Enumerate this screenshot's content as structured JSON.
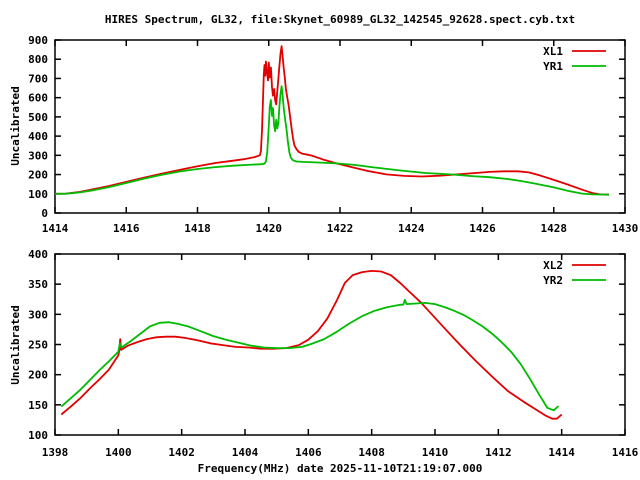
{
  "title": "HIRES Spectrum, GL32, file:Skynet_60989_GL32_142545_92628.spect.cyb.txt",
  "footer_xlabel": "Frequency(MHz) date 2025-11-10T21:19:07.000",
  "colors": {
    "background": "#ffffff",
    "axis": "#000000",
    "text": "#000000",
    "series_red": "#e10000",
    "series_green": "#00bb00"
  },
  "chart_data": [
    {
      "type": "line",
      "ylabel": "Uncalibrated",
      "xlim": [
        1414,
        1430
      ],
      "ylim": [
        0,
        900
      ],
      "xticks": [
        1414,
        1416,
        1418,
        1420,
        1422,
        1424,
        1426,
        1428,
        1430
      ],
      "yticks": [
        0,
        100,
        200,
        300,
        400,
        500,
        600,
        700,
        800,
        900
      ],
      "grid": false,
      "legend_position": "top-right",
      "series": [
        {
          "name": "XL1",
          "color": "#e10000",
          "points": [
            [
              1414.0,
              100
            ],
            [
              1414.3,
              101
            ],
            [
              1414.7,
              110
            ],
            [
              1415.0,
              121
            ],
            [
              1415.5,
              140
            ],
            [
              1416.0,
              162
            ],
            [
              1416.5,
              184
            ],
            [
              1417.0,
              205
            ],
            [
              1417.5,
              224
            ],
            [
              1418.0,
              243
            ],
            [
              1418.5,
              260
            ],
            [
              1419.0,
              272
            ],
            [
              1419.3,
              280
            ],
            [
              1419.6,
              291
            ],
            [
              1419.75,
              300
            ],
            [
              1419.78,
              320
            ],
            [
              1419.81,
              430
            ],
            [
              1419.84,
              590
            ],
            [
              1419.86,
              720
            ],
            [
              1419.88,
              770
            ],
            [
              1419.9,
              715
            ],
            [
              1419.92,
              788
            ],
            [
              1419.95,
              730
            ],
            [
              1419.98,
              690
            ],
            [
              1420.0,
              783
            ],
            [
              1420.03,
              705
            ],
            [
              1420.06,
              757
            ],
            [
              1420.09,
              655
            ],
            [
              1420.12,
              610
            ],
            [
              1420.15,
              645
            ],
            [
              1420.18,
              585
            ],
            [
              1420.21,
              565
            ],
            [
              1420.24,
              635
            ],
            [
              1420.27,
              700
            ],
            [
              1420.3,
              765
            ],
            [
              1420.33,
              830
            ],
            [
              1420.36,
              868
            ],
            [
              1420.39,
              815
            ],
            [
              1420.42,
              755
            ],
            [
              1420.45,
              705
            ],
            [
              1420.48,
              645
            ],
            [
              1420.52,
              600
            ],
            [
              1420.56,
              558
            ],
            [
              1420.6,
              500
            ],
            [
              1420.64,
              440
            ],
            [
              1420.68,
              388
            ],
            [
              1420.72,
              352
            ],
            [
              1420.78,
              332
            ],
            [
              1420.85,
              317
            ],
            [
              1420.95,
              308
            ],
            [
              1421.2,
              299
            ],
            [
              1421.5,
              280
            ],
            [
              1421.9,
              258
            ],
            [
              1422.3,
              240
            ],
            [
              1422.8,
              218
            ],
            [
              1423.3,
              201
            ],
            [
              1423.8,
              193
            ],
            [
              1424.3,
              190
            ],
            [
              1424.8,
              194
            ],
            [
              1425.3,
              201
            ],
            [
              1425.8,
              208
            ],
            [
              1426.2,
              214
            ],
            [
              1426.6,
              217
            ],
            [
              1427.0,
              217
            ],
            [
              1427.3,
              211
            ],
            [
              1427.6,
              196
            ],
            [
              1428.0,
              172
            ],
            [
              1428.4,
              148
            ],
            [
              1428.8,
              121
            ],
            [
              1429.1,
              103
            ],
            [
              1429.3,
              97
            ],
            [
              1429.55,
              95
            ]
          ]
        },
        {
          "name": "YR1",
          "color": "#00bb00",
          "points": [
            [
              1414.0,
              100
            ],
            [
              1414.3,
              100
            ],
            [
              1414.7,
              107
            ],
            [
              1415.0,
              116
            ],
            [
              1415.5,
              134
            ],
            [
              1416.0,
              156
            ],
            [
              1416.5,
              179
            ],
            [
              1417.0,
              199
            ],
            [
              1417.5,
              216
            ],
            [
              1418.0,
              229
            ],
            [
              1418.5,
              239
            ],
            [
              1419.0,
              246
            ],
            [
              1419.4,
              250
            ],
            [
              1419.8,
              254
            ],
            [
              1419.88,
              257
            ],
            [
              1419.92,
              268
            ],
            [
              1419.96,
              320
            ],
            [
              1420.0,
              455
            ],
            [
              1420.03,
              555
            ],
            [
              1420.06,
              588
            ],
            [
              1420.09,
              505
            ],
            [
              1420.12,
              545
            ],
            [
              1420.15,
              455
            ],
            [
              1420.18,
              425
            ],
            [
              1420.21,
              485
            ],
            [
              1420.24,
              440
            ],
            [
              1420.27,
              470
            ],
            [
              1420.3,
              555
            ],
            [
              1420.33,
              618
            ],
            [
              1420.36,
              660
            ],
            [
              1420.39,
              612
            ],
            [
              1420.42,
              548
            ],
            [
              1420.46,
              488
            ],
            [
              1420.5,
              432
            ],
            [
              1420.54,
              365
            ],
            [
              1420.58,
              315
            ],
            [
              1420.62,
              288
            ],
            [
              1420.68,
              274
            ],
            [
              1420.78,
              268
            ],
            [
              1420.95,
              266
            ],
            [
              1421.3,
              263
            ],
            [
              1421.9,
              258
            ],
            [
              1422.4,
              250
            ],
            [
              1423.0,
              236
            ],
            [
              1423.7,
              221
            ],
            [
              1424.4,
              208
            ],
            [
              1425.1,
              201
            ],
            [
              1425.7,
              192
            ],
            [
              1426.2,
              186
            ],
            [
              1426.7,
              177
            ],
            [
              1427.1,
              166
            ],
            [
              1427.5,
              152
            ],
            [
              1428.0,
              133
            ],
            [
              1428.4,
              115
            ],
            [
              1428.8,
              101
            ],
            [
              1429.1,
              97
            ],
            [
              1429.3,
              96
            ],
            [
              1429.55,
              95
            ]
          ]
        }
      ]
    },
    {
      "type": "line",
      "ylabel": "Uncalibrated",
      "xlabel": "Frequency(MHz) date 2025-11-10T21:19:07.000",
      "xlim": [
        1398,
        1416
      ],
      "ylim": [
        100,
        400
      ],
      "xticks": [
        1398,
        1400,
        1402,
        1404,
        1406,
        1408,
        1410,
        1412,
        1414,
        1416
      ],
      "yticks": [
        100,
        150,
        200,
        250,
        300,
        350,
        400
      ],
      "grid": false,
      "legend_position": "top-right",
      "series": [
        {
          "name": "XL2",
          "color": "#e10000",
          "points": [
            [
              1398.2,
              134
            ],
            [
              1398.5,
              147
            ],
            [
              1398.8,
              161
            ],
            [
              1399.1,
              177
            ],
            [
              1399.4,
              192
            ],
            [
              1399.7,
              208
            ],
            [
              1400.0,
              232
            ],
            [
              1400.03,
              240
            ],
            [
              1400.06,
              259
            ],
            [
              1400.09,
              241
            ],
            [
              1400.3,
              248
            ],
            [
              1400.6,
              254
            ],
            [
              1400.9,
              259
            ],
            [
              1401.2,
              262
            ],
            [
              1401.5,
              263
            ],
            [
              1401.8,
              263
            ],
            [
              1402.1,
              261
            ],
            [
              1402.5,
              257
            ],
            [
              1402.9,
              252
            ],
            [
              1403.3,
              249
            ],
            [
              1403.7,
              246
            ],
            [
              1404.1,
              245
            ],
            [
              1404.5,
              243
            ],
            [
              1404.9,
              243
            ],
            [
              1405.3,
              244
            ],
            [
              1405.7,
              249
            ],
            [
              1406.0,
              258
            ],
            [
              1406.3,
              272
            ],
            [
              1406.6,
              293
            ],
            [
              1406.9,
              323
            ],
            [
              1407.15,
              352
            ],
            [
              1407.4,
              365
            ],
            [
              1407.7,
              370
            ],
            [
              1408.0,
              372
            ],
            [
              1408.3,
              371
            ],
            [
              1408.6,
              365
            ],
            [
              1408.9,
              352
            ],
            [
              1409.2,
              337
            ],
            [
              1409.55,
              320
            ],
            [
              1409.9,
              300
            ],
            [
              1410.3,
              277
            ],
            [
              1410.8,
              249
            ],
            [
              1411.3,
              222
            ],
            [
              1411.8,
              197
            ],
            [
              1412.3,
              173
            ],
            [
              1412.8,
              155
            ],
            [
              1413.2,
              142
            ],
            [
              1413.5,
              132
            ],
            [
              1413.7,
              127
            ],
            [
              1413.85,
              127
            ],
            [
              1414.0,
              134
            ]
          ]
        },
        {
          "name": "YR2",
          "color": "#00bb00",
          "points": [
            [
              1398.2,
              147
            ],
            [
              1398.5,
              161
            ],
            [
              1398.8,
              175
            ],
            [
              1399.1,
              191
            ],
            [
              1399.4,
              207
            ],
            [
              1399.7,
              222
            ],
            [
              1400.0,
              238
            ],
            [
              1400.05,
              252
            ],
            [
              1400.1,
              245
            ],
            [
              1400.4,
              256
            ],
            [
              1400.7,
              268
            ],
            [
              1401.0,
              280
            ],
            [
              1401.3,
              286
            ],
            [
              1401.6,
              287
            ],
            [
              1401.9,
              284
            ],
            [
              1402.2,
              280
            ],
            [
              1402.6,
              272
            ],
            [
              1403.0,
              264
            ],
            [
              1403.4,
              258
            ],
            [
              1403.8,
              253
            ],
            [
              1404.2,
              248
            ],
            [
              1404.6,
              245
            ],
            [
              1405.0,
              244
            ],
            [
              1405.4,
              244
            ],
            [
              1405.8,
              246
            ],
            [
              1406.1,
              251
            ],
            [
              1406.5,
              259
            ],
            [
              1406.9,
              271
            ],
            [
              1407.3,
              285
            ],
            [
              1407.7,
              297
            ],
            [
              1408.1,
              306
            ],
            [
              1408.5,
              312
            ],
            [
              1408.9,
              316
            ],
            [
              1409.0,
              316
            ],
            [
              1409.05,
              324
            ],
            [
              1409.1,
              317
            ],
            [
              1409.4,
              318
            ],
            [
              1409.7,
              319
            ],
            [
              1410.0,
              317
            ],
            [
              1410.3,
              312
            ],
            [
              1410.6,
              306
            ],
            [
              1410.9,
              299
            ],
            [
              1411.2,
              290
            ],
            [
              1411.5,
              280
            ],
            [
              1411.8,
              268
            ],
            [
              1412.1,
              254
            ],
            [
              1412.4,
              238
            ],
            [
              1412.7,
              218
            ],
            [
              1413.0,
              193
            ],
            [
              1413.3,
              166
            ],
            [
              1413.55,
              145
            ],
            [
              1413.75,
              141
            ],
            [
              1413.9,
              148
            ]
          ]
        }
      ]
    }
  ]
}
